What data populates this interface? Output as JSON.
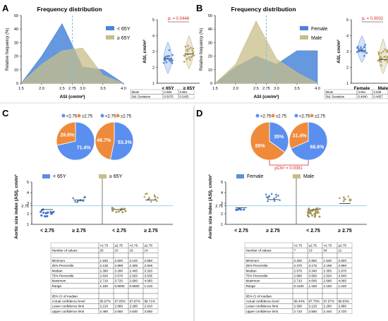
{
  "colors": {
    "blue": "#4a86d8",
    "blue_fill": "#5b8fe0",
    "tan": "#c8bd8a",
    "tan_fill": "#b7a86a",
    "orange": "#ef8a3b",
    "pie_blue": "#5a8ff0",
    "red": "#d22",
    "dash": "#6ec4e6"
  },
  "panels": {
    "A": {
      "label": "A"
    },
    "B": {
      "label": "B"
    },
    "C": {
      "label": "C"
    },
    "D": {
      "label": "D"
    }
  },
  "chart_data": [
    {
      "id": "A-freq",
      "type": "area",
      "title": "Frequency distribution",
      "xlabel": "ASI (cm/m²)",
      "ylabel": "Relative frequency (%)",
      "xlim": [
        1.5,
        4.0
      ],
      "ylim": [
        0,
        50
      ],
      "xticks": [
        "1.5",
        "2.0",
        "2.5",
        "2.75",
        "3.0",
        "3.5",
        "4.0"
      ],
      "yticks": [
        "0",
        "10",
        "20",
        "30",
        "40",
        "50"
      ],
      "ref_line_x": 2.75,
      "x": [
        1.5,
        2.0,
        2.5,
        3.0,
        3.5,
        4.0
      ],
      "series": [
        {
          "name": "< 65Y",
          "values": [
            0,
            20,
            44,
            12,
            10,
            0
          ]
        },
        {
          "name": "≥ 65Y",
          "values": [
            0,
            14,
            24,
            26,
            6,
            0
          ]
        }
      ]
    },
    {
      "id": "A-dot",
      "type": "scatter",
      "ylabel": "ASI, cm/m²",
      "ylim": [
        1,
        5
      ],
      "yticks": [
        "1",
        "2",
        "3",
        "4",
        "5"
      ],
      "categories": [
        "< 65Y",
        "≥ 65Y"
      ],
      "pvalue": "pₜ = 0.0446",
      "table": {
        "rows": [
          [
            "Mean",
            "2.583",
            "2.861"
          ],
          [
            "Std. Deviation",
            "0.5075",
            "0.5425"
          ]
        ]
      }
    },
    {
      "id": "B-freq",
      "type": "area",
      "title": "Frequency distribution",
      "xlabel": "ASI (cm/m²)",
      "ylabel": "Relative frequency (%)",
      "xlim": [
        1.5,
        4.0
      ],
      "ylim": [
        0,
        50
      ],
      "xticks": [
        "1.5",
        "2.0",
        "2.5",
        "2.75",
        "3.0",
        "3.5",
        "4.0"
      ],
      "yticks": [
        "0",
        "10",
        "20",
        "30",
        "40",
        "50"
      ],
      "ref_line_x": 2.75,
      "x": [
        1.5,
        2.0,
        2.5,
        3.0,
        3.5,
        4.0
      ],
      "series": [
        {
          "name": "Female",
          "values": [
            0,
            12,
            20,
            14,
            24,
            24
          ]
        },
        {
          "name": "Male",
          "values": [
            0,
            14,
            46,
            18,
            8,
            0
          ]
        }
      ]
    },
    {
      "id": "B-dot",
      "type": "scatter",
      "ylabel": "ASI, cm/m²",
      "ylim": [
        1,
        5
      ],
      "yticks": [
        "1",
        "2",
        "3",
        "4",
        "5"
      ],
      "categories": [
        "Female",
        "Male"
      ],
      "pvalue": "pₜ = 0.0002",
      "table": {
        "rows": [
          [
            "Mean",
            "3.061",
            "2.549"
          ],
          [
            "Std. Deviation",
            "0.4840",
            "0.4657"
          ]
        ]
      }
    },
    {
      "id": "C-pies",
      "type": "pie",
      "legend": [
        "<2.75",
        "≥2.75"
      ],
      "pies": [
        {
          "slices": [
            71.4,
            28.6
          ],
          "labels": [
            "71.4%",
            "28.6%"
          ]
        },
        {
          "slices": [
            53.3,
            46.7
          ],
          "labels": [
            "53.3%",
            "46.7%"
          ]
        }
      ]
    },
    {
      "id": "C-dot",
      "type": "scatter",
      "ylabel": "Aortic size index (ASI), cm/m²",
      "legend": [
        "< 65Y",
        "≥ 65Y"
      ],
      "ylim": [
        1,
        5
      ],
      "yticks": [
        "1",
        "2",
        "2.75",
        "3",
        "4",
        "5"
      ],
      "categories": [
        "< 2.75",
        "≥ 2.75"
      ],
      "table": {
        "header": [
          "",
          "<2.75",
          "≥2.75",
          "<2.75",
          "≥2.75"
        ],
        "rows": [
          [
            "Number of values",
            "25",
            "10",
            "16",
            "14"
          ],
          [
            "",
            "",
            "",
            "",
            ""
          ],
          [
            "Minimum",
            "1.530",
            "2.820",
            "2.120",
            "2.850"
          ],
          [
            "25% Percentile",
            "2.135",
            "2.888",
            "2.285",
            "2.948"
          ],
          [
            "Median",
            "2.390",
            "3.280",
            "2.400",
            "3.320"
          ],
          [
            "75% Percentile",
            "2.530",
            "3.570",
            "2.620",
            "3.535"
          ],
          [
            "Maximum",
            "2.710",
            "3.720",
            "2.680",
            "4.060"
          ],
          [
            "Range",
            "1.180",
            "0.9000",
            "0.5600",
            "1.210"
          ],
          [
            "",
            "",
            "",
            "",
            ""
          ],
          [
            "95% CI of median",
            "",
            "",
            "",
            ""
          ],
          [
            "Actual confidence level",
            "95.67%",
            "97.85%",
            "97.87%",
            "98.71%"
          ],
          [
            "Lower confidence limit",
            "2.210",
            "2.880",
            "2.280",
            "2.910"
          ],
          [
            "Upper confidence limit",
            "2.480",
            "3.660",
            "2.630",
            "3.580"
          ]
        ]
      }
    },
    {
      "id": "D-pies",
      "type": "pie",
      "legend": [
        "<2.75",
        "≥2.75"
      ],
      "pchi": "pChi² = 0.0081",
      "pies": [
        {
          "slices": [
            35,
            65
          ],
          "labels": [
            "35%",
            "65%"
          ]
        },
        {
          "slices": [
            68.6,
            31.4
          ],
          "labels": [
            "68.6%",
            "31.4%"
          ]
        }
      ]
    },
    {
      "id": "D-dot",
      "type": "scatter",
      "ylabel": "Aortic size index (ASI), cm/m²",
      "legend": [
        "Female",
        "Male"
      ],
      "ylim": [
        1,
        5
      ],
      "yticks": [
        "1",
        "2",
        "2.75",
        "3",
        "4",
        "5"
      ],
      "categories": [
        "< 2.75",
        "≥ 2.75"
      ],
      "table": {
        "header": [
          "",
          "<2.75",
          "≥2.75",
          "<2.75",
          "≥2.75"
        ],
        "rows": [
          [
            "Number of values",
            "7",
            "13",
            "34",
            "11"
          ],
          [
            "",
            "",
            "",
            "",
            ""
          ],
          [
            "Minimum",
            "2.300",
            "2.850",
            "1.530",
            "2.820"
          ],
          [
            "25% Percentile",
            "2.370",
            "3.175",
            "2.198",
            "2.890"
          ],
          [
            "Median",
            "2.570",
            "3.340",
            "2.355",
            "2.970"
          ],
          [
            "75% Percentile",
            "2.680",
            "3.550",
            "2.520",
            "3.540"
          ],
          [
            "Maximum",
            "2.710",
            "4.000",
            "2.680",
            "4.060"
          ],
          [
            "Range",
            "0.4100",
            "1.150",
            "1.150",
            "1.240"
          ],
          [
            "",
            "",
            "",
            "",
            ""
          ],
          [
            "95% CI of median",
            "",
            "",
            "",
            ""
          ],
          [
            "Actual confidence level",
            "98.44%",
            "97.75%",
            "97.57%",
            "98.83%"
          ],
          [
            "Lower confidence limit",
            "2.300",
            "3.120",
            "2.260",
            "2.880"
          ],
          [
            "Upper confidence limit",
            "2.710",
            "3.580",
            "2.440",
            "3.720"
          ]
        ]
      }
    }
  ]
}
